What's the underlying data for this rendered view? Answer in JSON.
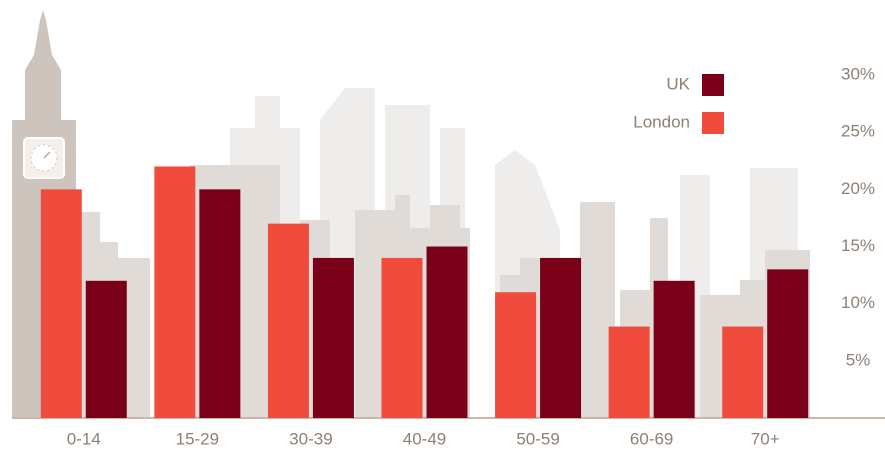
{
  "chart_data": {
    "type": "bar",
    "categories": [
      "0-14",
      "15-29",
      "30-39",
      "40-49",
      "50-59",
      "60-69",
      "70+"
    ],
    "series": [
      {
        "name": "London",
        "color": "#ef4c3d",
        "values": [
          20,
          22,
          17,
          14,
          11,
          8,
          8
        ]
      },
      {
        "name": "UK",
        "color": "#7a0019",
        "values": [
          12,
          20,
          14,
          15,
          14,
          12,
          13
        ]
      }
    ],
    "ylim": [
      0,
      30
    ],
    "yticks": [
      {
        "value": 5,
        "label": "5%"
      },
      {
        "value": 10,
        "label": "10%"
      },
      {
        "value": 15,
        "label": "15%"
      },
      {
        "value": 20,
        "label": "20%"
      },
      {
        "value": 25,
        "label": "25%"
      },
      {
        "value": 30,
        "label": "30%"
      }
    ],
    "y_axis_side": "right"
  }
}
